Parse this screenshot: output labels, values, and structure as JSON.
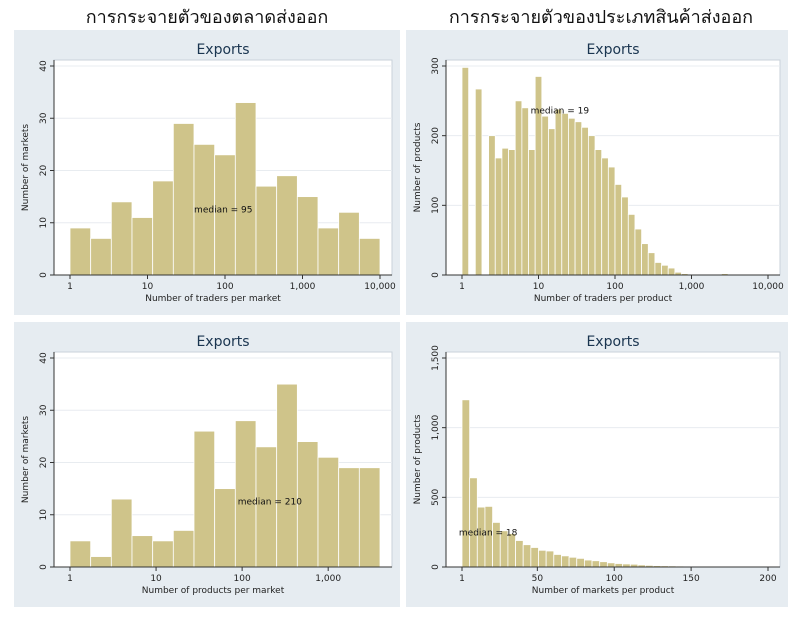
{
  "headings": {
    "left": "การกระจายตัวของตลาดส่งออก",
    "right": "การกระจายตัวของประเภทสินค้าส่งออก"
  },
  "colors": {
    "panel_bg": "#e6ecf1",
    "plot_bg": "#ffffff",
    "bar_fill": "#cfc48a",
    "bar_stroke": "#b1a462",
    "title_bar": "#dbe3ea",
    "gridline": "#e8ecf0",
    "axis": "#333333"
  },
  "chart_data": [
    {
      "type": "bar",
      "title": "Exports",
      "xlabel": "Number of traders per market",
      "ylabel": "Number of markets",
      "x_scale": "log",
      "xlim": [
        1,
        10000
      ],
      "ylim": [
        0,
        40
      ],
      "xticks": [
        "1",
        "10",
        "100",
        "1,000",
        "10,000"
      ],
      "yticks": [
        "0",
        "10",
        "20",
        "30",
        "40"
      ],
      "grid": true,
      "annotation": {
        "text": "median = 95",
        "x": 95,
        "y": 12
      },
      "values": [
        9,
        7,
        14,
        11,
        18,
        29,
        25,
        23,
        33,
        17,
        19,
        15,
        9,
        12,
        7
      ]
    },
    {
      "type": "bar",
      "title": "Exports",
      "xlabel": "Number of traders per product",
      "ylabel": "Number of products",
      "x_scale": "log",
      "xlim": [
        1,
        10000
      ],
      "ylim": [
        0,
        300
      ],
      "xticks": [
        "1",
        "10",
        "100",
        "1,000",
        "10,000"
      ],
      "yticks": [
        "0",
        "100",
        "200",
        "300"
      ],
      "grid": true,
      "annotation": {
        "text": "median = 19",
        "x": 19,
        "y": 232
      },
      "values": [
        298,
        0,
        267,
        0,
        200,
        168,
        182,
        180,
        250,
        240,
        180,
        285,
        228,
        210,
        238,
        232,
        225,
        220,
        212,
        200,
        180,
        168,
        155,
        130,
        112,
        87,
        66,
        45,
        32,
        18,
        14,
        10,
        4,
        2,
        1,
        0,
        0,
        0,
        1,
        2,
        0,
        0,
        0,
        0,
        1,
        0
      ]
    },
    {
      "type": "bar",
      "title": "Exports",
      "xlabel": "Number of products per market",
      "ylabel": "Number of markets",
      "x_scale": "log",
      "xlim": [
        1,
        4000
      ],
      "ylim": [
        0,
        40
      ],
      "xticks": [
        "1",
        "10",
        "100",
        "1,000"
      ],
      "yticks": [
        "0",
        "10",
        "20",
        "30",
        "40"
      ],
      "grid": true,
      "annotation": {
        "text": "median = 210",
        "x": 210,
        "y": 12
      },
      "values": [
        5,
        2,
        13,
        6,
        5,
        7,
        26,
        15,
        28,
        23,
        35,
        24,
        21,
        19,
        19
      ]
    },
    {
      "type": "bar",
      "title": "Exports",
      "xlabel": "Number of markets per product",
      "ylabel": "Number of products",
      "x_scale": "linear",
      "xlim": [
        1,
        200
      ],
      "ylim": [
        0,
        1500
      ],
      "xticks": [
        "1",
        "50",
        "100",
        "150",
        "200"
      ],
      "yticks": [
        "0",
        "500",
        "1,000",
        "1,500"
      ],
      "grid": true,
      "annotation": {
        "text": "median = 18",
        "x": 18,
        "y": 225
      },
      "values": [
        1200,
        640,
        430,
        435,
        320,
        260,
        240,
        190,
        160,
        140,
        120,
        115,
        90,
        80,
        70,
        62,
        50,
        45,
        38,
        30,
        25,
        22,
        20,
        15,
        12,
        10,
        9,
        8,
        7,
        6,
        5,
        4,
        4,
        3,
        3,
        2,
        2,
        2,
        1,
        1
      ]
    }
  ]
}
